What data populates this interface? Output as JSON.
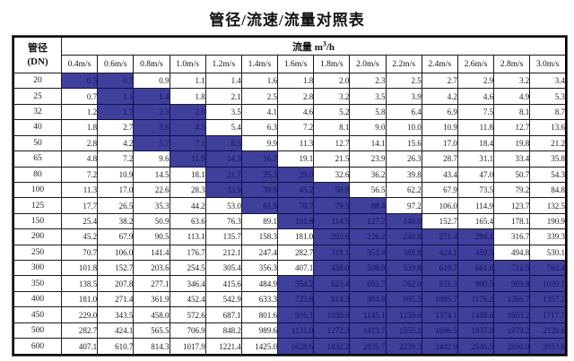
{
  "title": "管径/流速/流量对照表",
  "table": {
    "corner": {
      "line1": "管径",
      "line2": "(DN)"
    },
    "group": {
      "label": "流量",
      "unit_prefix": "m",
      "unit_sup": "3",
      "unit_suffix": "/h"
    },
    "velocity_headers": [
      "0.4m/s",
      "0.6m/s",
      "0.8m/s",
      "1.0m/s",
      "1.2m/s",
      "1.4m/s",
      "1.6m/s",
      "1.8m/s",
      "2.0m/s",
      "2.2m/s",
      "2.4m/s",
      "2.6m/s",
      "2.8m/s",
      "3.0m/s"
    ],
    "highlight_color": "#3f3f9c",
    "highlight_text_color": "#14145a",
    "rows": [
      {
        "dn": "20",
        "highlight": [
          0,
          1
        ],
        "values": [
          "0.5",
          "0.7",
          "0.9",
          "1.1",
          "1.4",
          "1.6",
          "1.8",
          "2.0",
          "2.3",
          "2.5",
          "2.7",
          "2.9",
          "3.2",
          "3.4"
        ]
      },
      {
        "dn": "25",
        "highlight": [
          1,
          2
        ],
        "values": [
          "0.7",
          "1.1",
          "1.4",
          "1.8",
          "2.1",
          "2.5",
          "2.8",
          "3.2",
          "3.5",
          "3.9",
          "4.2",
          "4.6",
          "4.9",
          "5.3"
        ]
      },
      {
        "dn": "32",
        "highlight": [
          1,
          3
        ],
        "values": [
          "1.2",
          "1.7",
          "2.3",
          "2.9",
          "3.5",
          "4.1",
          "4.6",
          "5.2",
          "5.8",
          "6.4",
          "6.9",
          "7.5",
          "8.1",
          "8.7"
        ]
      },
      {
        "dn": "40",
        "highlight": [
          2,
          3
        ],
        "values": [
          "1.8",
          "2.7",
          "3.6",
          "4.5",
          "5.4",
          "6.3",
          "7.2",
          "8.1",
          "9.0",
          "10.0",
          "10.9",
          "11.8",
          "12.7",
          "13.6"
        ]
      },
      {
        "dn": "50",
        "highlight": [
          2,
          4
        ],
        "values": [
          "2.8",
          "4.2",
          "5.7",
          "7.1",
          "8.5",
          "9.9",
          "11.3",
          "12.7",
          "14.1",
          "15.6",
          "17.0",
          "18.4",
          "19.8",
          "21.2"
        ]
      },
      {
        "dn": "65",
        "highlight": [
          3,
          5
        ],
        "values": [
          "4.8",
          "7.2",
          "9.6",
          "11.9",
          "14.3",
          "16.7",
          "19.1",
          "21.5",
          "23.9",
          "26.3",
          "28.7",
          "31.1",
          "33.4",
          "35.8"
        ]
      },
      {
        "dn": "80",
        "highlight": [
          4,
          6
        ],
        "values": [
          "7.2",
          "10.9",
          "14.5",
          "18.1",
          "21.7",
          "25.3",
          "29.0",
          "32.6",
          "36.2",
          "39.8",
          "43.4",
          "47.0",
          "50.7",
          "54.3"
        ]
      },
      {
        "dn": "100",
        "highlight": [
          4,
          7
        ],
        "values": [
          "11.3",
          "17.0",
          "22.6",
          "28.3",
          "33.9",
          "39.6",
          "45.2",
          "50.9",
          "56.5",
          "62.2",
          "67.9",
          "73.5",
          "79.2",
          "84.8"
        ]
      },
      {
        "dn": "125",
        "highlight": [
          5,
          8
        ],
        "values": [
          "17.7",
          "26.5",
          "35.3",
          "44.2",
          "53.0",
          "61.9",
          "70.7",
          "79.5",
          "88.4",
          "97.2",
          "106.0",
          "114.9",
          "123.7",
          "132.5"
        ]
      },
      {
        "dn": "150",
        "highlight": [
          6,
          9
        ],
        "values": [
          "25.4",
          "38.2",
          "50.9",
          "63.6",
          "76.3",
          "89.1",
          "101.8",
          "114.5",
          "127.2",
          "140.0",
          "152.7",
          "165.4",
          "178.1",
          "190.9"
        ]
      },
      {
        "dn": "200",
        "highlight": [
          7,
          11
        ],
        "values": [
          "45.2",
          "67.9",
          "90.5",
          "113.1",
          "135.7",
          "158.3",
          "181.0",
          "203.6",
          "226.2",
          "248.8",
          "271.4",
          "294.1",
          "316.7",
          "339.3"
        ]
      },
      {
        "dn": "250",
        "highlight": [
          7,
          11
        ],
        "values": [
          "70.7",
          "106.0",
          "141.4",
          "176.7",
          "212.1",
          "247.4",
          "282.7",
          "318.1",
          "353.4",
          "388.8",
          "424.1",
          "459.5",
          "494.8",
          "530.1"
        ]
      },
      {
        "dn": "300",
        "highlight": [
          7,
          13
        ],
        "values": [
          "101.8",
          "152.7",
          "203.6",
          "254.5",
          "305.4",
          "356.3",
          "407.1",
          "458.0",
          "508.9",
          "559.8",
          "610.7",
          "661.6",
          "712.5",
          "763.4"
        ]
      },
      {
        "dn": "350",
        "highlight": [
          6,
          13
        ],
        "values": [
          "138.5",
          "207.8",
          "277.1",
          "346.4",
          "415.6",
          "484.9",
          "554.2",
          "623.4",
          "692.7",
          "762.0",
          "831.3",
          "900.5",
          "969.8",
          "1039.1"
        ]
      },
      {
        "dn": "400",
        "highlight": [
          6,
          13
        ],
        "values": [
          "181.0",
          "271.4",
          "361.9",
          "452.4",
          "542.9",
          "633.3",
          "723.8",
          "814.3",
          "904.8",
          "995.3",
          "1085.7",
          "1176.2",
          "1266.7",
          "1357.2"
        ]
      },
      {
        "dn": "450",
        "highlight": [
          6,
          13
        ],
        "values": [
          "229.0",
          "343.5",
          "458.0",
          "572.6",
          "687.1",
          "801.6",
          "916.1",
          "1030.6",
          "1145.1",
          "1259.6",
          "1374.1",
          "1488.6",
          "1603.2",
          "1717.7"
        ]
      },
      {
        "dn": "500",
        "highlight": [
          6,
          13
        ],
        "values": [
          "282.7",
          "424.1",
          "565.5",
          "706.9",
          "848.2",
          "989.6",
          "1131.0",
          "1272.3",
          "1413.7",
          "1555.1",
          "1696.5",
          "1837.8",
          "1979.2",
          "2120.6"
        ]
      },
      {
        "dn": "600",
        "highlight": [
          6,
          13
        ],
        "values": [
          "407.1",
          "610.7",
          "814.3",
          "1017.9",
          "1221.4",
          "1425.0",
          "1628.6",
          "1832.2",
          "2035.7",
          "2239.3",
          "2442.9",
          "2646.5",
          "2850.0",
          "3053.6"
        ]
      }
    ]
  }
}
